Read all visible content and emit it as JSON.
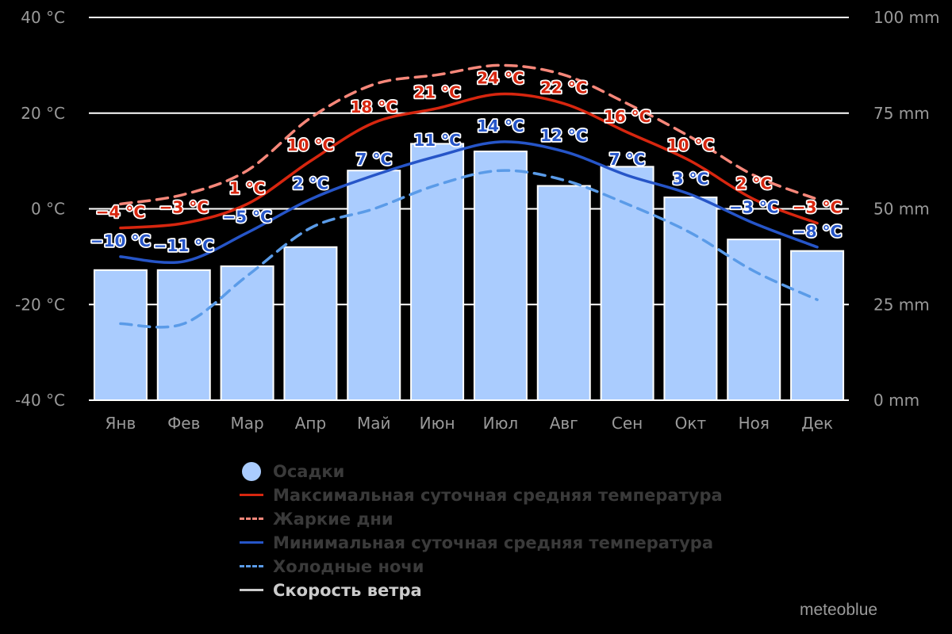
{
  "chart_data": {
    "type": "bar",
    "categories": [
      "Янв",
      "Фев",
      "Мар",
      "Апр",
      "Май",
      "Июн",
      "Июл",
      "Авг",
      "Сен",
      "Окт",
      "Ноя",
      "Дек"
    ],
    "bars": {
      "name": "Осадки",
      "unit": "mm",
      "values": [
        34,
        34,
        35,
        40,
        60,
        67,
        65,
        56,
        61,
        53,
        42,
        39
      ]
    },
    "series": [
      {
        "name": "Максимальная суточная средняя температура",
        "values": [
          -4,
          -3,
          1,
          10,
          18,
          21,
          24,
          22,
          16,
          10,
          2,
          -3
        ],
        "labels": [
          "−4 °C",
          "−3 °C",
          "1 °C",
          "10 °C",
          "18 °C",
          "21 °C",
          "24 °C",
          "22 °C",
          "16 °C",
          "10 °C",
          "2 °C",
          "−3 °C"
        ],
        "color": "#d7260f",
        "style": "solid"
      },
      {
        "name": "Жаркие дни",
        "values": [
          1,
          3,
          8,
          19,
          26,
          28,
          30,
          28,
          22,
          15,
          7,
          2
        ],
        "color": "#f6877a",
        "style": "dashed"
      },
      {
        "name": "Минимальная суточная средняя температура",
        "values": [
          -10,
          -11,
          -5,
          2,
          7,
          11,
          14,
          12,
          7,
          3,
          -3,
          -8
        ],
        "labels": [
          "−10 °C",
          "−11 °C",
          "−5 °C",
          "2 °C",
          "7 °C",
          "11 °C",
          "14 °C",
          "12 °C",
          "7 °C",
          "3 °C",
          "−3 °C",
          "−8 °C"
        ],
        "color": "#2655c8",
        "style": "solid"
      },
      {
        "name": "Холодные ночи",
        "values": [
          -24,
          -24,
          -14,
          -4,
          0,
          5,
          8,
          6,
          1,
          -5,
          -13,
          -19
        ],
        "color": "#5a9be8",
        "style": "dashed"
      }
    ],
    "extra_legend": [
      {
        "name": "Скорость ветра",
        "color": "#cccccc"
      }
    ],
    "y_left": {
      "ticks": [
        "40 °C",
        "20 °C",
        "0 °C",
        "-20 °C",
        "-40 °C"
      ],
      "range": [
        -40,
        40
      ]
    },
    "y_right": {
      "ticks": [
        "100 mm",
        "75 mm",
        "50 mm",
        "25 mm",
        "0 mm"
      ],
      "range": [
        0,
        100
      ]
    },
    "grid": true,
    "colors": {
      "bar": "#aaccfe",
      "background": "#000000",
      "tick_text": "#9a9a9a",
      "legend_text": "#3a3a3a",
      "legend_text_active": "#cccccc"
    }
  },
  "legend": [
    {
      "label": "Осадки",
      "symbol": "dot",
      "color": "#aaccfe",
      "active": false
    },
    {
      "label": "Максимальная суточная средняя температура",
      "symbol": "solid",
      "color": "#d7260f",
      "active": false
    },
    {
      "label": "Жаркие дни",
      "symbol": "dashed",
      "color": "#f6877a",
      "active": false
    },
    {
      "label": "Минимальная суточная средняя температура",
      "symbol": "solid",
      "color": "#2655c8",
      "active": false
    },
    {
      "label": "Холодные ночи",
      "symbol": "dashed",
      "color": "#5a9be8",
      "active": false
    },
    {
      "label": "Скорость ветра",
      "symbol": "solid",
      "color": "#cccccc",
      "active": true
    }
  ],
  "brand": "meteoblue"
}
